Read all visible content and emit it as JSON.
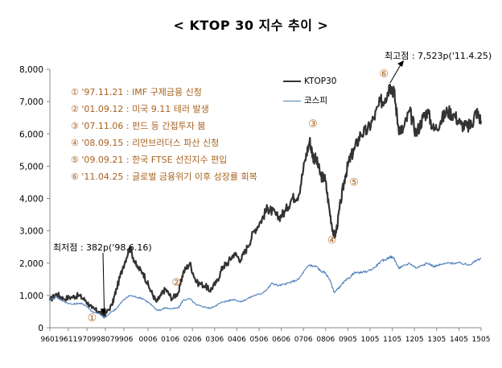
{
  "chart_data": {
    "type": "line",
    "title": "< KTOP 30 지수 추이 >",
    "xlabel": "",
    "ylabel": "",
    "ylim": [
      0,
      8000
    ],
    "yticks": [
      0,
      1000,
      2000,
      3000,
      4000,
      5000,
      6000,
      7000,
      8000
    ],
    "ytick_labels": [
      "0",
      "1,000",
      "2,000",
      "3,000",
      "4,000",
      "5,000",
      "6,000",
      "7,000",
      "8,000"
    ],
    "xlim": [
      1996.0,
      2015.42
    ],
    "xticks": [
      1996.0,
      1996.83,
      1997.67,
      1998.5,
      1999.33,
      2000.42,
      2001.42,
      2002.42,
      2003.42,
      2004.42,
      2005.42,
      2006.42,
      2007.42,
      2008.42,
      2009.42,
      2010.42,
      2011.42,
      2012.42,
      2013.42,
      2014.42,
      2015.42
    ],
    "xtick_labels": [
      "9601",
      "9611",
      "9709",
      "9807",
      "9906",
      "0006",
      "0106",
      "0206",
      "0306",
      "0406",
      "0506",
      "0606",
      "0706",
      "0806",
      "0905",
      "1005",
      "1105",
      "1205",
      "1305",
      "1405",
      "1505"
    ],
    "legend": [
      "KTOP30",
      "코스피"
    ],
    "legend_position": "top-right",
    "series": [
      {
        "name": "KTOP30",
        "color": "#333333",
        "x": [
          1996.0,
          1996.3,
          1996.6,
          1997.0,
          1997.3,
          1997.6,
          1997.9,
          1998.2,
          1998.45,
          1998.8,
          1999.0,
          1999.3,
          1999.6,
          1999.9,
          2000.2,
          2000.5,
          2000.8,
          2001.0,
          2001.2,
          2001.5,
          2001.8,
          2002.0,
          2002.3,
          2002.6,
          2003.0,
          2003.2,
          2003.5,
          2003.8,
          2004.0,
          2004.3,
          2004.6,
          2004.9,
          2005.2,
          2005.5,
          2005.8,
          2006.0,
          2006.3,
          2006.6,
          2006.9,
          2007.2,
          2007.5,
          2007.7,
          2007.85,
          2008.0,
          2008.2,
          2008.4,
          2008.6,
          2008.8,
          2008.9,
          2009.1,
          2009.3,
          2009.5,
          2009.7,
          2010.0,
          2010.3,
          2010.6,
          2010.9,
          2011.1,
          2011.32,
          2011.5,
          2011.7,
          2011.9,
          2012.2,
          2012.5,
          2012.8,
          2013.0,
          2013.3,
          2013.6,
          2013.9,
          2014.2,
          2014.5,
          2014.8,
          2015.0,
          2015.2,
          2015.42
        ],
        "y": [
          850,
          1050,
          900,
          950,
          1000,
          850,
          600,
          500,
          382,
          700,
          1200,
          1900,
          2500,
          1900,
          1700,
          1200,
          800,
          1000,
          1200,
          900,
          1100,
          1700,
          2000,
          1400,
          1300,
          1150,
          1400,
          1900,
          2000,
          2300,
          2100,
          2500,
          3000,
          3300,
          3700,
          3600,
          3400,
          3600,
          4000,
          4100,
          5200,
          5800,
          5300,
          5200,
          4700,
          4600,
          3600,
          2800,
          3000,
          3900,
          4700,
          5200,
          5500,
          6000,
          6100,
          6500,
          7000,
          7100,
          7523,
          7300,
          6200,
          6100,
          6700,
          6000,
          6500,
          6700,
          6100,
          6400,
          6700,
          6600,
          6300,
          6200,
          6300,
          6700,
          6400
        ]
      },
      {
        "name": "코스피",
        "color": "#4f81bd",
        "x": [
          1996.0,
          1996.3,
          1996.6,
          1997.0,
          1997.3,
          1997.6,
          1997.9,
          1998.2,
          1998.45,
          1998.8,
          1999.0,
          1999.3,
          1999.6,
          1999.9,
          2000.2,
          2000.5,
          2000.8,
          2001.0,
          2001.2,
          2001.5,
          2001.8,
          2002.0,
          2002.3,
          2002.6,
          2003.0,
          2003.2,
          2003.5,
          2003.8,
          2004.0,
          2004.3,
          2004.6,
          2004.9,
          2005.2,
          2005.5,
          2005.8,
          2006.0,
          2006.3,
          2006.6,
          2006.9,
          2007.2,
          2007.5,
          2007.7,
          2007.85,
          2008.0,
          2008.2,
          2008.4,
          2008.6,
          2008.8,
          2008.9,
          2009.1,
          2009.3,
          2009.5,
          2009.7,
          2010.0,
          2010.3,
          2010.6,
          2010.9,
          2011.1,
          2011.32,
          2011.5,
          2011.7,
          2011.9,
          2012.2,
          2012.5,
          2012.8,
          2013.0,
          2013.3,
          2013.6,
          2013.9,
          2014.2,
          2014.5,
          2014.8,
          2015.0,
          2015.2,
          2015.42
        ],
        "y": [
          880,
          950,
          820,
          720,
          760,
          700,
          500,
          450,
          300,
          500,
          600,
          850,
          1000,
          950,
          900,
          750,
          550,
          550,
          620,
          580,
          620,
          850,
          900,
          700,
          640,
          600,
          700,
          800,
          830,
          880,
          800,
          900,
          1000,
          1050,
          1200,
          1380,
          1300,
          1350,
          1420,
          1500,
          1800,
          1950,
          1900,
          1900,
          1750,
          1700,
          1500,
          1100,
          1150,
          1300,
          1450,
          1550,
          1700,
          1700,
          1750,
          1850,
          2050,
          2100,
          2200,
          2150,
          1850,
          1900,
          2000,
          1850,
          1950,
          2000,
          1900,
          1950,
          2000,
          2000,
          2000,
          1950,
          1980,
          2080,
          2150
        ]
      }
    ],
    "annotations": {
      "min_label": "최저점 : 382p('98.6.16)",
      "max_label": "최고점 : 7,523p('11.4.25)",
      "events": [
        {
          "marker": "①",
          "text": "① '97.11.21 : IMF 구제금융 신청",
          "x": 1997.9,
          "y": 300
        },
        {
          "marker": "②",
          "text": "② '01.09.12 : 미국 9.11 테러 발생",
          "x": 2001.7,
          "y": 1400
        },
        {
          "marker": "③",
          "text": "③ '07.11.06 : 펀드 등 간접투자 붐",
          "x": 2007.85,
          "y": 6300
        },
        {
          "marker": "④",
          "text": "④ '08.09.15 : 리먼브러더스 파산 신청",
          "x": 2008.7,
          "y": 2700
        },
        {
          "marker": "⑤",
          "text": "⑤ '09.09.21 : 한국 FTSE 선진지수 편입",
          "x": 2009.7,
          "y": 4500
        },
        {
          "marker": "⑥",
          "text": "⑥ '11.04.25 : 글로벌 금융위기 이후 성장률 회복",
          "x": 2011.05,
          "y": 7850
        }
      ]
    }
  },
  "colors": {
    "ktop30": "#333333",
    "kospi": "#4f81bd",
    "annotation": "#a8621f",
    "axis": "#888888"
  }
}
